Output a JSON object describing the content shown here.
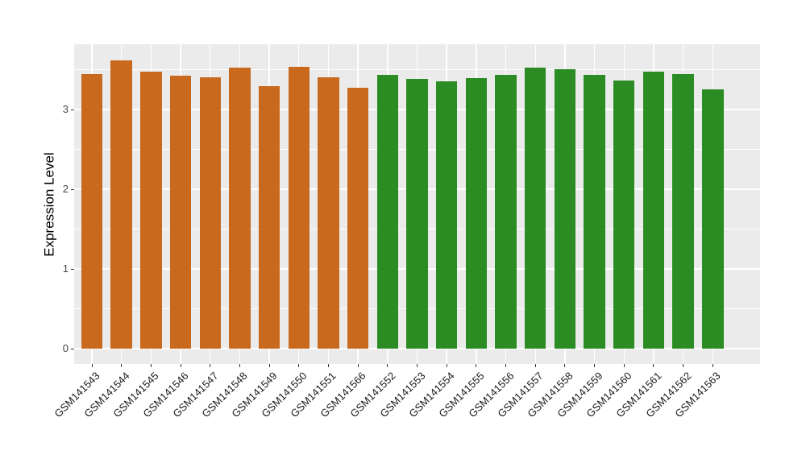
{
  "chart_data": {
    "type": "bar",
    "title": "",
    "xlabel": "",
    "ylabel": "Expression Level",
    "ylim": [
      0,
      3.82
    ],
    "yticks": [
      0,
      1,
      2,
      3
    ],
    "ytick_labels": [
      "0",
      "1",
      "2",
      "3"
    ],
    "yminor_ticks": [
      0.5,
      1.5,
      2.5,
      3.5
    ],
    "grid": "on",
    "legend": "none",
    "panel_bg_color": "#EBEBEB",
    "grid_color": "#FFFFFF",
    "tick_color": "#333333",
    "group_colors": {
      "orange": "#C8691D",
      "green": "#2A8C23"
    },
    "categories": [
      "GSM141543",
      "GSM141544",
      "GSM141545",
      "GSM141546",
      "GSM141547",
      "GSM141548",
      "GSM141549",
      "GSM141550",
      "GSM141551",
      "GSM141566",
      "GSM141552",
      "GSM141553",
      "GSM141554",
      "GSM141555",
      "GSM141556",
      "GSM141557",
      "GSM141558",
      "GSM141559",
      "GSM141560",
      "GSM141561",
      "GSM141562",
      "GSM141563"
    ],
    "values": [
      3.44,
      3.62,
      3.47,
      3.42,
      3.4,
      3.53,
      3.29,
      3.54,
      3.4,
      3.27,
      3.43,
      3.38,
      3.35,
      3.39,
      3.43,
      3.53,
      3.51,
      3.43,
      3.36,
      3.47,
      3.44,
      3.25
    ],
    "groups": [
      "orange",
      "orange",
      "orange",
      "orange",
      "orange",
      "orange",
      "orange",
      "orange",
      "orange",
      "orange",
      "green",
      "green",
      "green",
      "green",
      "green",
      "green",
      "green",
      "green",
      "green",
      "green",
      "green",
      "green"
    ]
  }
}
